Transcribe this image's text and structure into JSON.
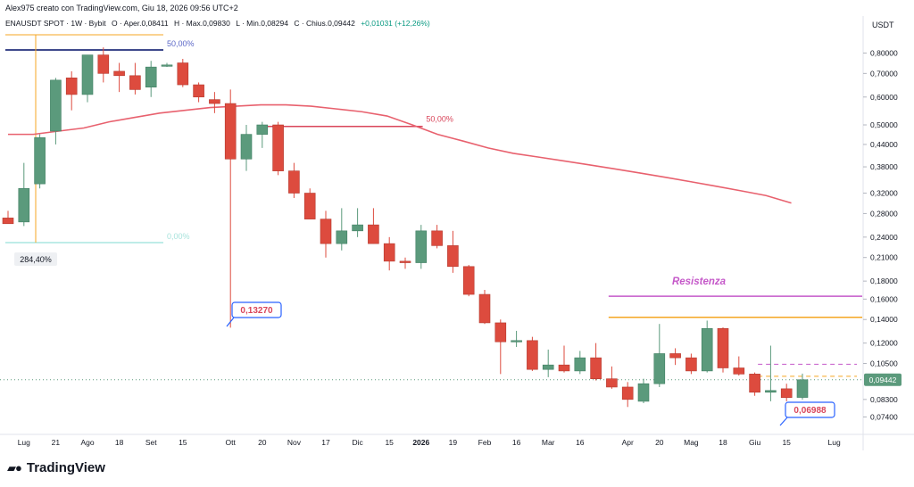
{
  "header": {
    "creator_line": "Alex975 creato con TradingView.com, Giu 18, 2026 09:56 UTC+2",
    "symbol": "ENAUSDT SPOT · 1W · Bybit",
    "open": "O · Aper.0,08411",
    "high": "H · Max.0,09830",
    "low": "L · Min.0,08294",
    "close": "C · Chius.0,09442",
    "change": "+0,01031 (+12,26%)"
  },
  "axis": {
    "currency": "USDT",
    "y_ticks": [
      "0,80000",
      "0,70000",
      "0,60000",
      "0,50000",
      "0,44000",
      "0,38000",
      "0,32000",
      "0,28000",
      "0,24000",
      "0,21000",
      "0,18000",
      "0,16000",
      "0,14000",
      "0,12000",
      "0,10500",
      "0,08300",
      "0,07400"
    ],
    "x_ticks": [
      "Lug",
      "21",
      "Ago",
      "18",
      "Set",
      "15",
      "Ott",
      "20",
      "Nov",
      "17",
      "Dic",
      "15",
      "2026",
      "19",
      "Feb",
      "16",
      "Mar",
      "16",
      "Apr",
      "20",
      "Mag",
      "18",
      "Giu",
      "15",
      "Lug"
    ],
    "current_price": "0,09442"
  },
  "annotations": {
    "fib_top": "50,00%",
    "fib_mid": "50,00%",
    "fib_faint": "0,00%",
    "measure_pct": "284,40%",
    "callout_low1": "0,13270",
    "callout_low2": "0,06988",
    "resistance_label": "Resistenza"
  },
  "colors": {
    "up": "#5b9a7c",
    "down": "#dd4b3e",
    "ma": "#e8616e",
    "resistance_line": "#c559c9",
    "orange_line": "#f5a623",
    "navy_line": "#3f4a8c",
    "callout_border": "#2962ff",
    "price_tag": "#5b9a7c"
  },
  "brand": {
    "name": "TradingView"
  },
  "chart_data": {
    "type": "candlestick",
    "scale": "log",
    "title": "ENAUSDT SPOT · 1W · Bybit",
    "ylabel": "USDT",
    "ylim": [
      0.068,
      0.95
    ],
    "candles": [
      {
        "o": 0.272,
        "h": 0.285,
        "l": 0.262,
        "c": 0.262
      },
      {
        "o": 0.265,
        "h": 0.39,
        "l": 0.258,
        "c": 0.33
      },
      {
        "o": 0.34,
        "h": 0.47,
        "l": 0.33,
        "c": 0.46
      },
      {
        "o": 0.48,
        "h": 0.68,
        "l": 0.44,
        "c": 0.67
      },
      {
        "o": 0.68,
        "h": 0.71,
        "l": 0.55,
        "c": 0.61
      },
      {
        "o": 0.61,
        "h": 0.79,
        "l": 0.58,
        "c": 0.79
      },
      {
        "o": 0.79,
        "h": 0.83,
        "l": 0.66,
        "c": 0.7
      },
      {
        "o": 0.71,
        "h": 0.75,
        "l": 0.62,
        "c": 0.69
      },
      {
        "o": 0.69,
        "h": 0.75,
        "l": 0.61,
        "c": 0.63
      },
      {
        "o": 0.64,
        "h": 0.76,
        "l": 0.6,
        "c": 0.73
      },
      {
        "o": 0.74,
        "h": 0.75,
        "l": 0.73,
        "c": 0.74
      },
      {
        "o": 0.75,
        "h": 0.77,
        "l": 0.64,
        "c": 0.65
      },
      {
        "o": 0.65,
        "h": 0.66,
        "l": 0.58,
        "c": 0.6
      },
      {
        "o": 0.59,
        "h": 0.62,
        "l": 0.54,
        "c": 0.575
      },
      {
        "o": 0.575,
        "h": 0.63,
        "l": 0.1327,
        "c": 0.4
      },
      {
        "o": 0.4,
        "h": 0.5,
        "l": 0.37,
        "c": 0.47
      },
      {
        "o": 0.47,
        "h": 0.51,
        "l": 0.43,
        "c": 0.5
      },
      {
        "o": 0.5,
        "h": 0.51,
        "l": 0.36,
        "c": 0.37
      },
      {
        "o": 0.37,
        "h": 0.39,
        "l": 0.31,
        "c": 0.32
      },
      {
        "o": 0.32,
        "h": 0.33,
        "l": 0.27,
        "c": 0.27
      },
      {
        "o": 0.27,
        "h": 0.285,
        "l": 0.21,
        "c": 0.23
      },
      {
        "o": 0.23,
        "h": 0.29,
        "l": 0.22,
        "c": 0.25
      },
      {
        "o": 0.25,
        "h": 0.29,
        "l": 0.24,
        "c": 0.26
      },
      {
        "o": 0.26,
        "h": 0.29,
        "l": 0.23,
        "c": 0.23
      },
      {
        "o": 0.23,
        "h": 0.24,
        "l": 0.193,
        "c": 0.205
      },
      {
        "o": 0.205,
        "h": 0.21,
        "l": 0.195,
        "c": 0.203
      },
      {
        "o": 0.203,
        "h": 0.26,
        "l": 0.195,
        "c": 0.25
      },
      {
        "o": 0.25,
        "h": 0.26,
        "l": 0.223,
        "c": 0.227
      },
      {
        "o": 0.227,
        "h": 0.25,
        "l": 0.19,
        "c": 0.198
      },
      {
        "o": 0.198,
        "h": 0.2,
        "l": 0.163,
        "c": 0.165
      },
      {
        "o": 0.165,
        "h": 0.17,
        "l": 0.136,
        "c": 0.137
      },
      {
        "o": 0.137,
        "h": 0.14,
        "l": 0.098,
        "c": 0.121
      },
      {
        "o": 0.121,
        "h": 0.13,
        "l": 0.117,
        "c": 0.122
      },
      {
        "o": 0.122,
        "h": 0.125,
        "l": 0.1,
        "c": 0.101
      },
      {
        "o": 0.101,
        "h": 0.115,
        "l": 0.096,
        "c": 0.104
      },
      {
        "o": 0.104,
        "h": 0.118,
        "l": 0.099,
        "c": 0.1
      },
      {
        "o": 0.1,
        "h": 0.114,
        "l": 0.098,
        "c": 0.109
      },
      {
        "o": 0.109,
        "h": 0.12,
        "l": 0.094,
        "c": 0.095
      },
      {
        "o": 0.095,
        "h": 0.103,
        "l": 0.089,
        "c": 0.09
      },
      {
        "o": 0.09,
        "h": 0.093,
        "l": 0.079,
        "c": 0.083
      },
      {
        "o": 0.082,
        "h": 0.095,
        "l": 0.081,
        "c": 0.092
      },
      {
        "o": 0.092,
        "h": 0.136,
        "l": 0.09,
        "c": 0.112
      },
      {
        "o": 0.112,
        "h": 0.116,
        "l": 0.104,
        "c": 0.109
      },
      {
        "o": 0.109,
        "h": 0.112,
        "l": 0.098,
        "c": 0.1
      },
      {
        "o": 0.1,
        "h": 0.139,
        "l": 0.099,
        "c": 0.132
      },
      {
        "o": 0.132,
        "h": 0.133,
        "l": 0.099,
        "c": 0.102
      },
      {
        "o": 0.102,
        "h": 0.11,
        "l": 0.097,
        "c": 0.098
      },
      {
        "o": 0.098,
        "h": 0.099,
        "l": 0.085,
        "c": 0.087
      },
      {
        "o": 0.087,
        "h": 0.118,
        "l": 0.082,
        "c": 0.088
      },
      {
        "o": 0.089,
        "h": 0.092,
        "l": 0.082,
        "c": 0.084
      },
      {
        "o": 0.0841,
        "h": 0.0983,
        "l": 0.0829,
        "c": 0.0944
      }
    ],
    "moving_average": [
      0.47,
      0.47,
      0.48,
      0.49,
      0.51,
      0.525,
      0.54,
      0.55,
      0.56,
      0.565,
      0.57,
      0.57,
      0.565,
      0.555,
      0.545,
      0.53,
      0.5,
      0.47,
      0.45,
      0.43,
      0.415,
      0.405,
      0.395,
      0.385,
      0.375,
      0.365,
      0.355,
      0.345,
      0.335,
      0.325,
      0.315,
      0.3
    ],
    "horizontal_levels": [
      {
        "label": "Resistenza",
        "value": 0.163
      },
      {
        "label": "",
        "value": 0.142
      },
      {
        "label": "50,00%",
        "value": 0.495
      }
    ]
  }
}
